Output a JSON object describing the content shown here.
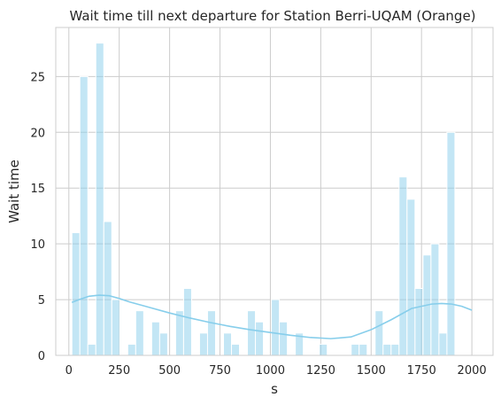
{
  "chart_data": {
    "type": "bar",
    "title": "Wait time till next departure for Station Berri-UQAM (Orange)",
    "xlabel": "s",
    "ylabel": "Wait time",
    "xlim": [
      -65,
      2105
    ],
    "ylim": [
      0,
      29.4
    ],
    "xticks": [
      0,
      250,
      500,
      750,
      1000,
      1250,
      1500,
      1750,
      2000
    ],
    "yticks": [
      0,
      5,
      10,
      15,
      20,
      25
    ],
    "grid": true,
    "bin_start": 15,
    "bin_width": 39.6,
    "bin_counts": [
      11,
      25,
      1,
      28,
      12,
      5,
      0,
      1,
      4,
      0,
      3,
      2,
      0,
      4,
      6,
      0,
      2,
      4,
      0,
      2,
      1,
      0,
      4,
      3,
      0,
      5,
      3,
      0,
      2,
      0,
      0,
      1,
      0,
      0,
      0,
      1,
      1,
      0,
      4,
      1,
      1,
      16,
      14,
      6,
      9,
      10,
      2,
      20
    ],
    "bar_color": "#87ceeb",
    "kde": {
      "color": "#87ceeb",
      "x": [
        15,
        50,
        100,
        150,
        200,
        250,
        300,
        400,
        500,
        600,
        700,
        800,
        900,
        1000,
        1100,
        1200,
        1300,
        1400,
        1500,
        1600,
        1700,
        1800,
        1850,
        1900,
        1950,
        2000
      ],
      "y": [
        4.75,
        5.0,
        5.3,
        5.4,
        5.35,
        5.1,
        4.8,
        4.3,
        3.8,
        3.35,
        2.95,
        2.6,
        2.3,
        2.05,
        1.8,
        1.6,
        1.5,
        1.65,
        2.3,
        3.2,
        4.2,
        4.6,
        4.65,
        4.6,
        4.4,
        4.05
      ]
    }
  }
}
